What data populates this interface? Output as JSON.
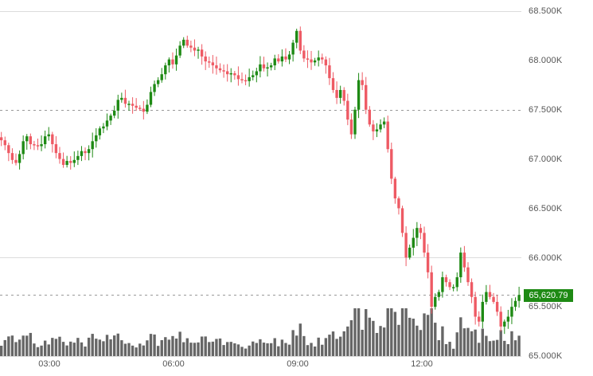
{
  "chart_data": {
    "type": "candlestick",
    "title": "",
    "xlabel": "",
    "ylabel": "",
    "ylim": [
      65000,
      68500
    ],
    "y_ticks": [
      "68.500K",
      "68.000K",
      "67.500K",
      "67.000K",
      "66.500K",
      "66.000K",
      "65.500K",
      "65.000K"
    ],
    "y_tick_values": [
      68500,
      68000,
      67500,
      67000,
      66500,
      66000,
      65500,
      65000
    ],
    "x_ticks": [
      "03:00",
      "06:00",
      "09:00",
      "12:00"
    ],
    "x_tick_positions": [
      62,
      218,
      374,
      530
    ],
    "current_price": "65,620.79",
    "current_price_value": 65620.79,
    "colors": {
      "up": "#1e8a14",
      "down": "#ee5a64",
      "volume": "#666666",
      "grid": "#d9d9d9",
      "price_tag": "#1e8a14"
    },
    "gridlines": [
      {
        "value": 68500,
        "style": "solid"
      },
      {
        "value": 67500,
        "style": "dashed"
      },
      {
        "value": 66000,
        "style": "solid"
      },
      {
        "value": 65620.79,
        "style": "dashed"
      }
    ],
    "closes": [
      67190,
      67140,
      67060,
      66990,
      66960,
      67050,
      67180,
      67230,
      67150,
      67140,
      67130,
      67150,
      67230,
      67250,
      67150,
      67060,
      67000,
      66940,
      66980,
      66960,
      66990,
      67030,
      67080,
      67060,
      67100,
      67180,
      67240,
      67310,
      67330,
      67390,
      67440,
      67490,
      67600,
      67620,
      67560,
      67560,
      67540,
      67520,
      67510,
      67480,
      67550,
      67680,
      67760,
      67800,
      67860,
      67950,
      68010,
      67960,
      68050,
      68150,
      68210,
      68150,
      68130,
      68100,
      68110,
      68040,
      67990,
      67980,
      67950,
      67920,
      67900,
      67890,
      67860,
      67870,
      67850,
      67810,
      67800,
      67790,
      67830,
      67850,
      67890,
      67960,
      67920,
      67930,
      67950,
      68020,
      67990,
      68040,
      68010,
      68060,
      68180,
      68300,
      68100,
      68020,
      68010,
      67980,
      68000,
      68030,
      68010,
      67950,
      67820,
      67700,
      67620,
      67700,
      67590,
      67400,
      67250,
      67500,
      67800,
      67750,
      67500,
      67350,
      67280,
      67300,
      67350,
      67380,
      67100,
      66800,
      66600,
      66500,
      66250,
      66000,
      66100,
      66200,
      66300,
      66250,
      66050,
      65850,
      65500,
      65600,
      65650,
      65800,
      65750,
      65700,
      65700,
      65800,
      66050,
      65900,
      65750,
      65600,
      65400,
      65350,
      65550,
      65650,
      65600,
      65550,
      65450,
      65300,
      65350,
      65400,
      65500,
      65560,
      65620
    ]
  },
  "axis": {
    "y_labels": [
      "68.500K",
      "68.000K",
      "67.500K",
      "67.000K",
      "66.500K",
      "66.000K",
      "65.500K",
      "65.000K"
    ],
    "x_labels": [
      "03:00",
      "06:00",
      "09:00",
      "12:00"
    ],
    "price_tag": "65,620.79"
  }
}
